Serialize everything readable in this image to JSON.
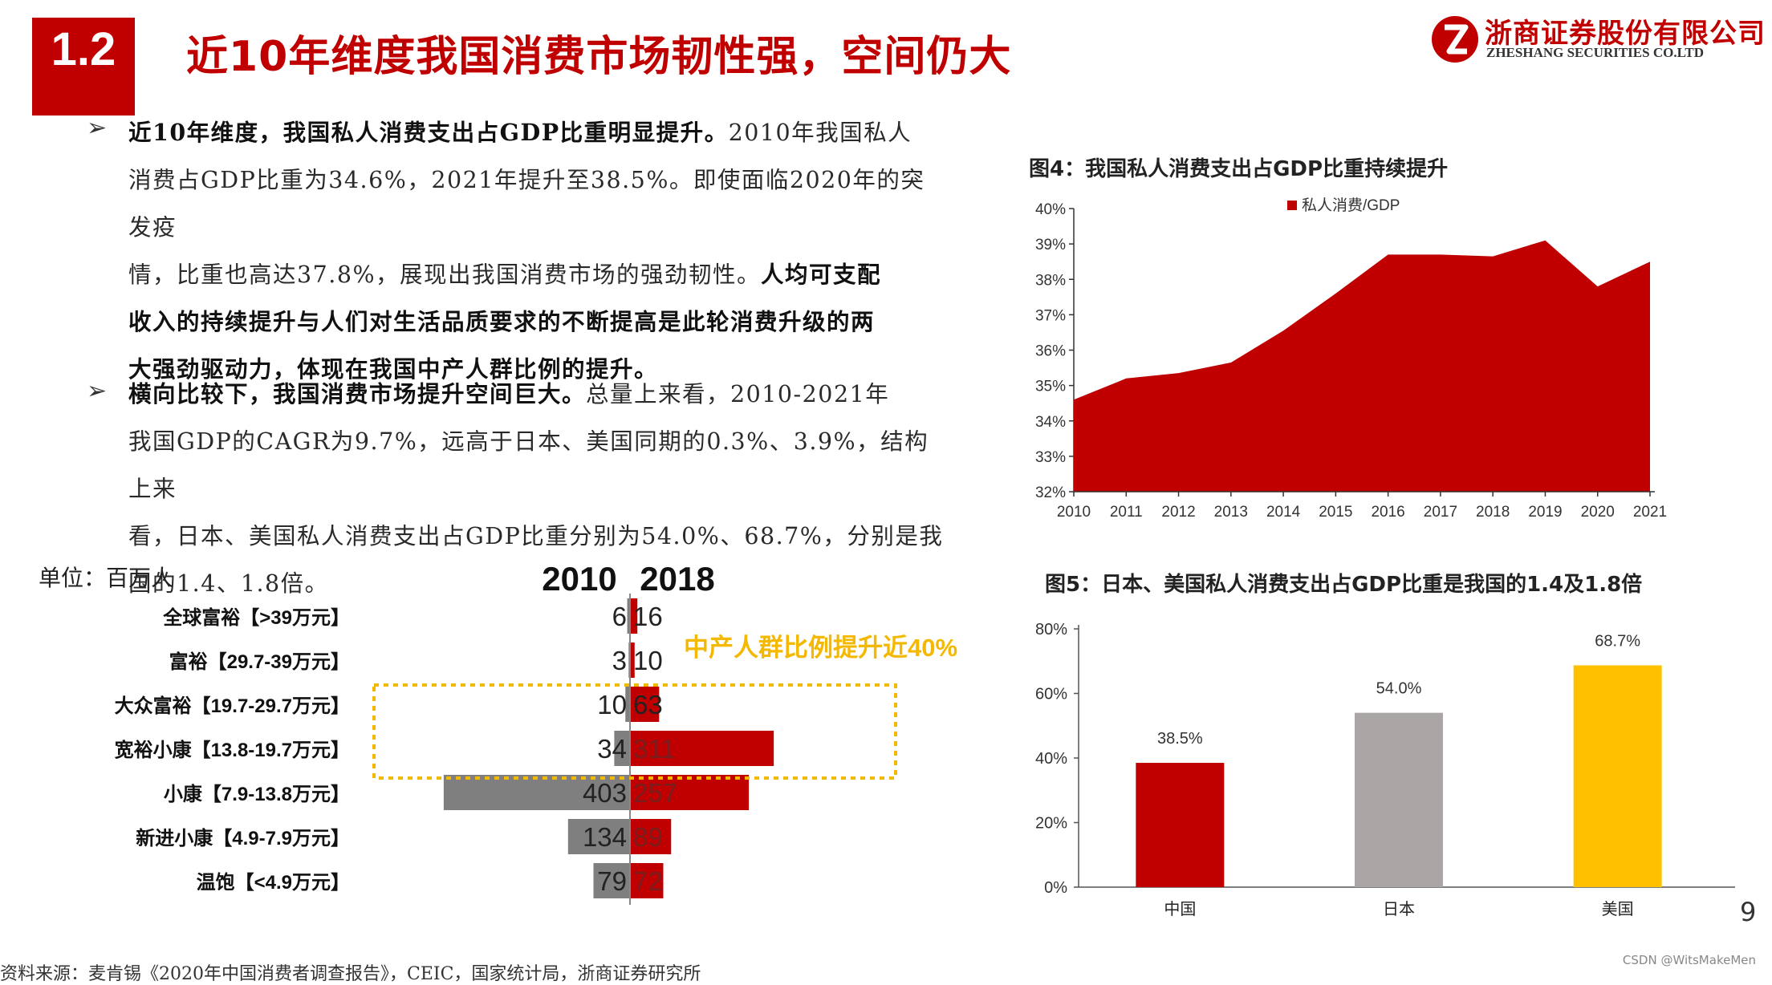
{
  "header": {
    "section_num": "1.2",
    "title": "近10年维度我国消费市场韧性强，空间仍大",
    "company_cn": "浙商证券股份有限公司",
    "company_en": "ZHESHANG SECURITIES CO.LTD"
  },
  "bullets": [
    {
      "marker": "➢",
      "lines": [
        [
          {
            "text": "近10年维度，我国私人消费支出占GDP比重明显提升。",
            "bold": true
          },
          {
            "text": "2010年我国私人",
            "bold": false
          }
        ],
        [
          {
            "text": "消费占GDP比重为34.6%，2021年提升至38.5%。即使面临2020年的突发疫",
            "bold": false
          }
        ],
        [
          {
            "text": "情，比重也高达37.8%，展现出我国消费市场的强劲韧性。",
            "bold": false
          },
          {
            "text": "人均可支配",
            "bold": true
          }
        ],
        [
          {
            "text": "收入的持续提升与人们对生活品质要求的不断提高是此轮消费升级的两",
            "bold": true
          }
        ],
        [
          {
            "text": "大强劲驱动力，体现在我国中产人群比例的提升。",
            "bold": true
          }
        ]
      ]
    },
    {
      "marker": "➢",
      "lines": [
        [
          {
            "text": "横向比较下，我国消费市场提升空间巨大。",
            "bold": true
          },
          {
            "text": "总量上来看，2010-2021年",
            "bold": false
          }
        ],
        [
          {
            "text": "我国GDP的CAGR为9.7%，远高于日本、美国同期的0.3%、3.9%，结构上来",
            "bold": false
          }
        ],
        [
          {
            "text": "看，日本、美国私人消费支出占GDP比重分别为54.0%、68.7%，分别是我",
            "bold": false
          }
        ],
        [
          {
            "text": "国的1.4、1.8倍。",
            "bold": false
          }
        ]
      ]
    }
  ],
  "colors": {
    "red": "#c00000",
    "gray": "#7f7f7f",
    "lightgray": "#aaa6a6",
    "gold": "#ffc000",
    "dotted": "#f5b800"
  },
  "chart_data": [
    {
      "type": "bar",
      "orientation": "horizontal-diverging",
      "unit_label": "单位：百万人",
      "categories": [
        "全球富裕【>39万元】",
        "富裕【29.7-39万元】",
        "大众富裕【19.7-29.7万元】",
        "宽裕小康【13.8-19.7万元】",
        "小康【7.9-13.8万元】",
        "新进小康【4.9-7.9万元】",
        "温饱【<4.9万元】"
      ],
      "series": [
        {
          "name": "2010",
          "values": [
            6,
            3,
            10,
            34,
            403,
            134,
            79
          ]
        },
        {
          "name": "2018",
          "values": [
            16,
            10,
            63,
            311,
            257,
            89,
            72
          ]
        }
      ],
      "annotation": "中产人群比例提升近40%"
    },
    {
      "type": "area",
      "title": "图4：我国私人消费支出占GDP比重持续提升",
      "legend": "私人消费/GDP",
      "x": [
        "2010",
        "2011",
        "2012",
        "2013",
        "2014",
        "2015",
        "2016",
        "2017",
        "2018",
        "2019",
        "2020",
        "2021"
      ],
      "values": [
        34.6,
        35.2,
        35.35,
        35.65,
        36.55,
        37.6,
        38.7,
        38.7,
        38.65,
        39.1,
        37.8,
        38.5
      ],
      "ylim": [
        32,
        40
      ],
      "yticks": [
        "32%",
        "33%",
        "34%",
        "35%",
        "36%",
        "37%",
        "38%",
        "39%",
        "40%"
      ]
    },
    {
      "type": "bar",
      "title": "图5：日本、美国私人消费支出占GDP比重是我国的1.4及1.8倍",
      "categories": [
        "中国",
        "日本",
        "美国"
      ],
      "values": [
        38.5,
        54.0,
        68.7
      ],
      "labels": [
        "38.5%",
        "54.0%",
        "68.7%"
      ],
      "ylim": [
        0,
        80
      ],
      "yticks": [
        "0%",
        "20%",
        "40%",
        "60%",
        "80%"
      ]
    }
  ],
  "footer": {
    "page_num": "9",
    "watermark": "CSDN @WitsMakeMen",
    "source": "资料来源：麦肯锡《2020年中国消费者调查报告》，CEIC，国家统计局，浙商证券研究所"
  }
}
